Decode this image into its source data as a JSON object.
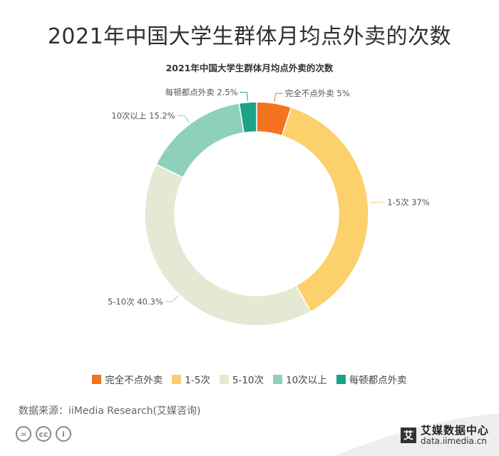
{
  "page_title": "2021年中国大学生群体月均点外卖的次数",
  "source_text": "数据来源：iiMedia Research(艾媒咨询)",
  "brand": {
    "name": "艾媒数据中心",
    "url": "data.iimedia.cn",
    "logo_char": "艾"
  },
  "license_icons": [
    "=",
    "cc",
    "i"
  ],
  "chart_data": {
    "type": "pie",
    "style": "donut",
    "title": "2021年中国大学生群体月均点外卖的次数",
    "legend_position": "bottom",
    "categories": [
      "完全不点外卖",
      "1-5次",
      "5-10次",
      "10次以上",
      "每顿都点外卖"
    ],
    "values": [
      5,
      37,
      40.3,
      15.2,
      2.5
    ],
    "colors": [
      "#f47321",
      "#fcd06a",
      "#e3e9d2",
      "#8dd0bc",
      "#1aa388"
    ],
    "labels": [
      "完全不点外卖 5%",
      "1-5次 37%",
      "5-10次 40.3%",
      "10次以上 15.2%",
      "每顿都点外卖 2.5%"
    ]
  }
}
